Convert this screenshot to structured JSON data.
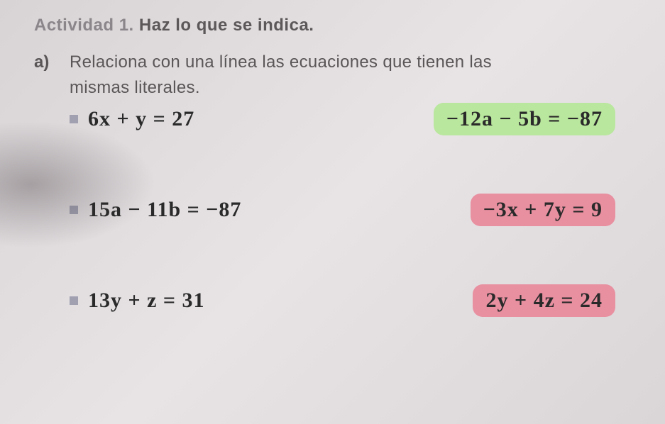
{
  "header": {
    "activity_label": "Actividad 1.",
    "activity_instruction": "Haz lo que se indica."
  },
  "item": {
    "letter": "a)",
    "instruction_line1": "Relaciona con una línea las ecuaciones que tienen las",
    "instruction_line2": "mismas literales."
  },
  "equations": {
    "left": [
      "6x + y = 27",
      "15a − 11b = −87",
      "13y + z = 31"
    ],
    "right": [
      "−12a − 5b = −87",
      "−3x + 7y = 9",
      "2y + 4z = 24"
    ]
  },
  "styles": {
    "highlight_colors": [
      "#b9e79d",
      "#e88fa0",
      "#e88fa0"
    ],
    "bullet_color": "#a0a0b0",
    "handwriting_color": "#2a2a2a",
    "page_bg_from": "#d8d4d6",
    "page_bg_to": "#dad6d8",
    "header_label_color": "#8a868a",
    "body_text_color": "#5a5658",
    "handwriting_fontsize": 30,
    "instruction_fontsize": 24
  }
}
